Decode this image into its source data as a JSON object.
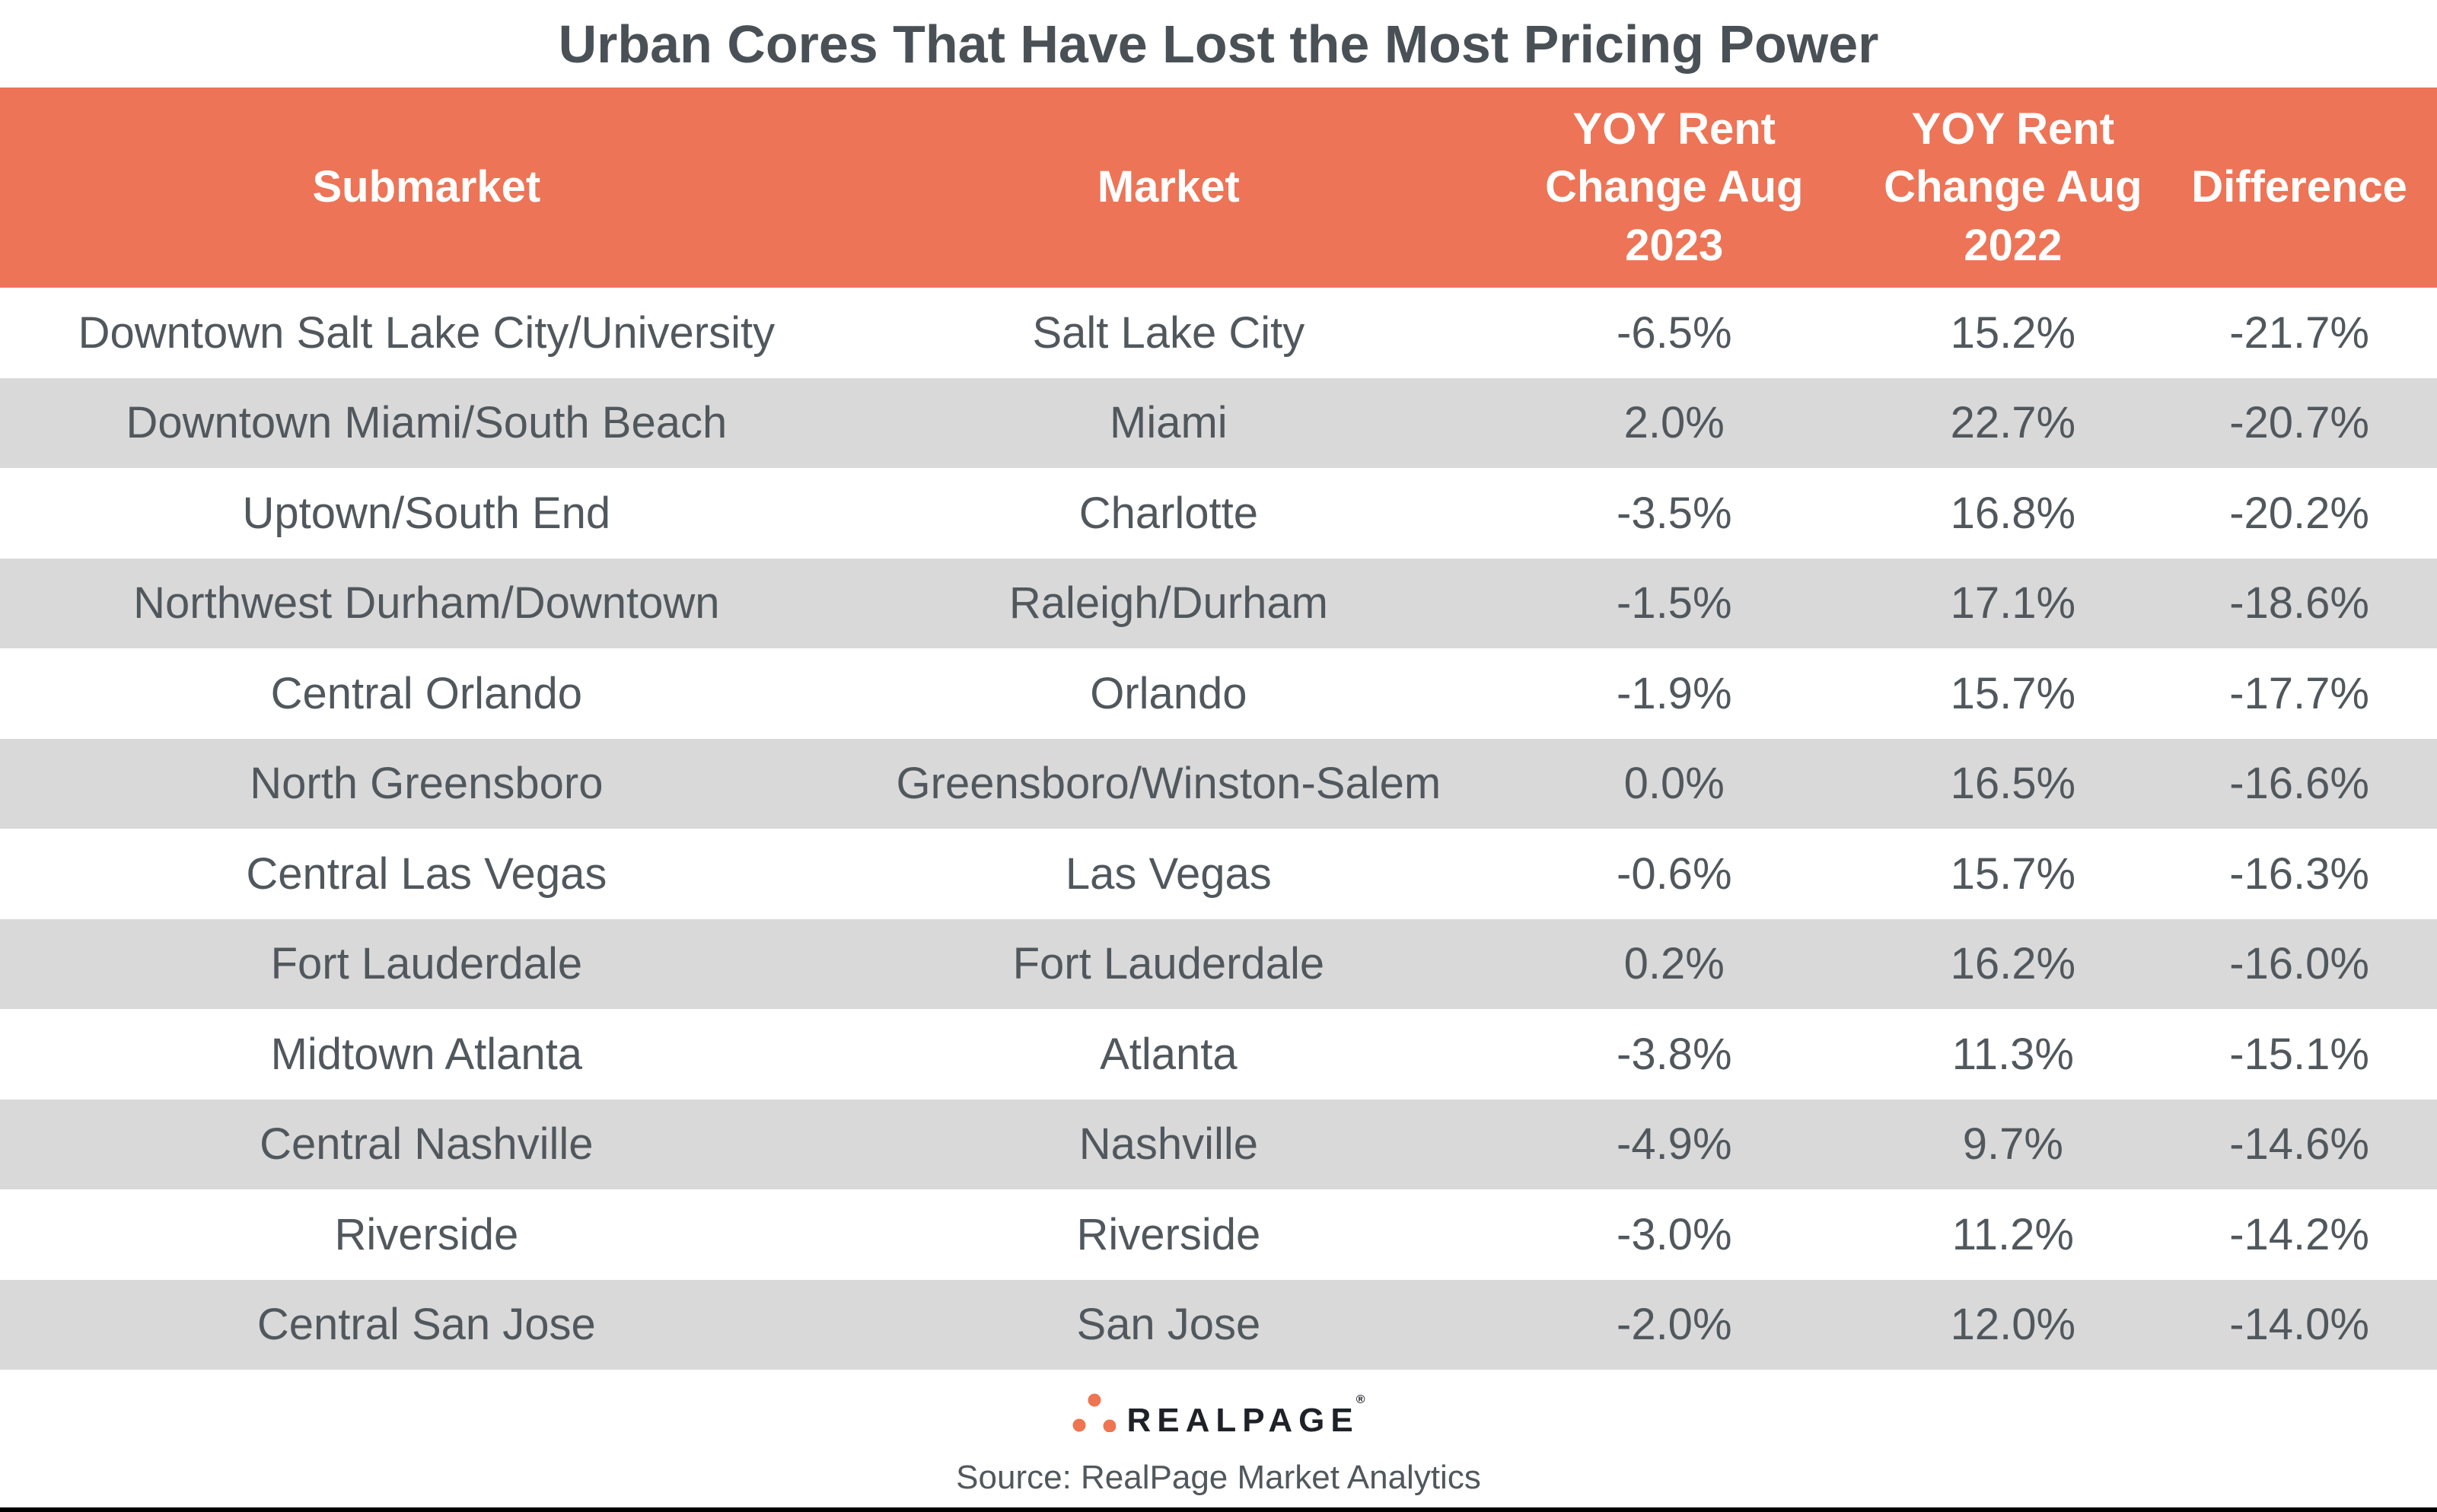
{
  "page_title": "Urban Cores That Have Lost the Most Pricing Power",
  "chart_data": {
    "type": "table",
    "title": "Urban Cores That Have Lost the Most Pricing Power",
    "columns": [
      "Submarket",
      "Market",
      "YOY Rent Change Aug 2023",
      "YOY Rent Change Aug 2022",
      "Difference"
    ],
    "header_display": [
      "Submarket",
      "Market",
      "YOY Rent\nChange Aug\n2023",
      "YOY Rent\nChange Aug\n2022",
      "Difference"
    ],
    "rows": [
      [
        "Downtown Salt Lake City/University",
        "Salt Lake City",
        "-6.5%",
        "15.2%",
        "-21.7%"
      ],
      [
        "Downtown Miami/South Beach",
        "Miami",
        "2.0%",
        "22.7%",
        "-20.7%"
      ],
      [
        "Uptown/South End",
        "Charlotte",
        "-3.5%",
        "16.8%",
        "-20.2%"
      ],
      [
        "Northwest Durham/Downtown",
        "Raleigh/Durham",
        "-1.5%",
        "17.1%",
        "-18.6%"
      ],
      [
        "Central Orlando",
        "Orlando",
        "-1.9%",
        "15.7%",
        "-17.7%"
      ],
      [
        "North Greensboro",
        "Greensboro/Winston-Salem",
        "0.0%",
        "16.5%",
        "-16.6%"
      ],
      [
        "Central Las Vegas",
        "Las Vegas",
        "-0.6%",
        "15.7%",
        "-16.3%"
      ],
      [
        "Fort Lauderdale",
        "Fort Lauderdale",
        "0.2%",
        "16.2%",
        "-16.0%"
      ],
      [
        "Midtown Atlanta",
        "Atlanta",
        "-3.8%",
        "11.3%",
        "-15.1%"
      ],
      [
        "Central Nashville",
        "Nashville",
        "-4.9%",
        "9.7%",
        "-14.6%"
      ],
      [
        "Riverside",
        "Riverside",
        "-3.0%",
        "11.2%",
        "-14.2%"
      ],
      [
        "Central San Jose",
        "San Jose",
        "-2.0%",
        "12.0%",
        "-14.0%"
      ]
    ]
  },
  "footer": {
    "logo_text": "REALPAGE",
    "registered_mark": "®",
    "source": "Source: RealPage Market Analytics"
  },
  "colors": {
    "header_bg": "#ED7456",
    "row_alt_bg": "#D9D9D9",
    "row_bg": "#FFFFFF",
    "title_text": "#4A5156",
    "cell_text": "#51585D",
    "header_text": "#FFFFFF",
    "logo_dot": "#EF7451",
    "logo_text_color": "#1E2228",
    "bottom_bar": "#000000"
  }
}
